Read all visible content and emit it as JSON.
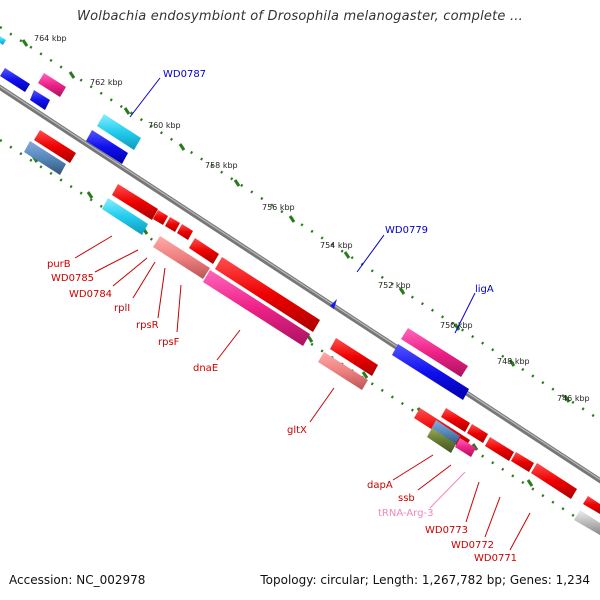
{
  "title": "Wolbachia endosymbiont of Drosophila melanogaster, complete ...",
  "footer": {
    "accession": "Accession: NC_002978",
    "summary": "Topology: circular; Length: 1,267,782 bp; Genes: 1,234"
  },
  "colors": {
    "backbone": "#777777",
    "tick": "#2a7a1e",
    "red": "#ee1111",
    "pink": "#ee2288",
    "salmon": "#ee8888",
    "blue": "#1a1aee",
    "cyan": "#22ccee",
    "steel": "#5588bb",
    "olive": "#667a33",
    "gray": "#bbbbbb",
    "label_red": "#cc0000",
    "label_blue": "#0000cc",
    "label_trna": "#ee88bb"
  },
  "ticks": [
    "764 kbp",
    "762 kbp",
    "760 kbp",
    "758 kbp",
    "756 kbp",
    "754 kbp",
    "752 kbp",
    "750 kbp",
    "748 kbp",
    "746 kbp"
  ],
  "labels": {
    "WD0787": "WD0787",
    "WD0779": "WD0779",
    "ligA": "ligA",
    "purB": "purB",
    "WD0785": "WD0785",
    "WD0784": "WD0784",
    "rplI": "rplI",
    "rpsR": "rpsR",
    "rpsF": "rpsF",
    "dnaE": "dnaE",
    "gltX": "gltX",
    "dapA": "dapA",
    "ssb": "ssb",
    "tRNA": "tRNA-Arg-3",
    "WD0773": "WD0773",
    "WD0772": "WD0772",
    "WD0771": "WD0771"
  }
}
